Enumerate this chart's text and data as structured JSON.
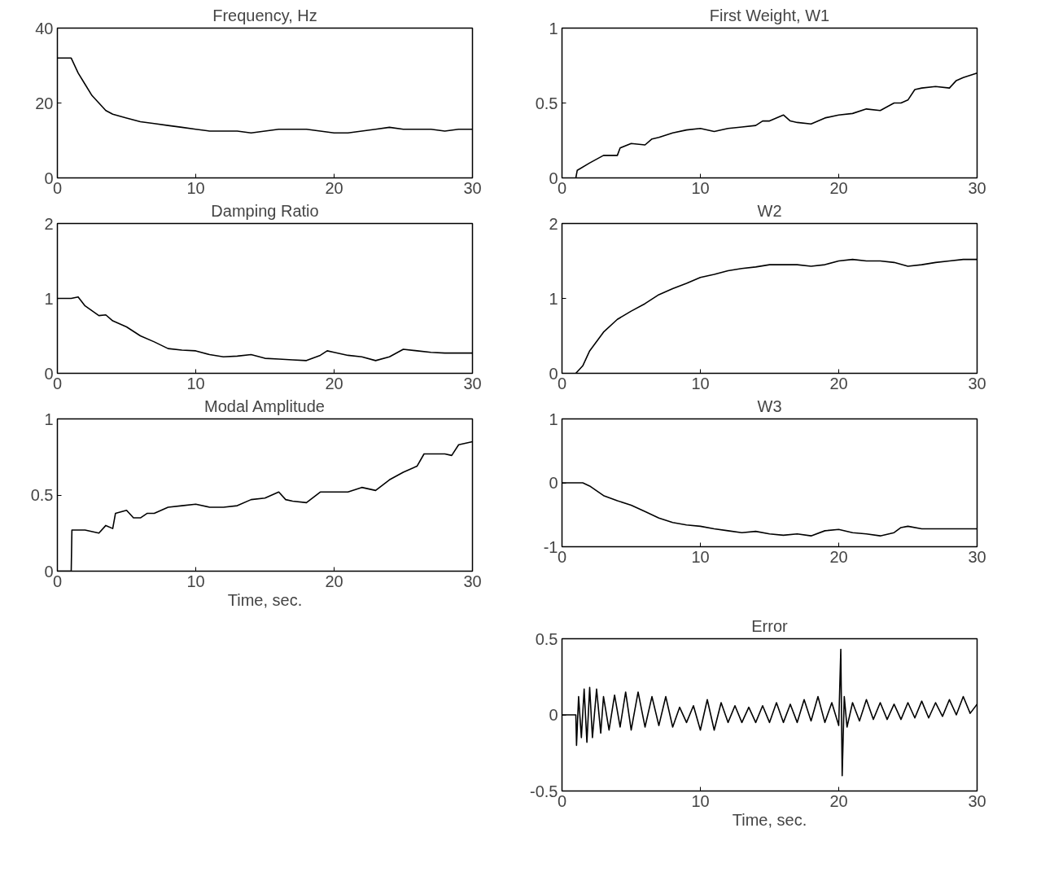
{
  "chart_data": [
    {
      "type": "line",
      "title": "Frequency, Hz",
      "xlim": [
        0,
        30
      ],
      "xticks": [
        0,
        10,
        20,
        30
      ],
      "ylim": [
        0,
        40
      ],
      "yticks": [
        0,
        20,
        40
      ],
      "series": [
        {
          "color": "#000000",
          "x": [
            0,
            1,
            1.5,
            2,
            2.5,
            3,
            3.5,
            4,
            5,
            6,
            7,
            8,
            9,
            10,
            11,
            12,
            13,
            14,
            15,
            16,
            17,
            18,
            19,
            20,
            21,
            22,
            23,
            24,
            25,
            26,
            27,
            28,
            29,
            30
          ],
          "values": [
            32,
            32,
            28,
            25,
            22,
            20,
            18,
            17,
            16,
            15,
            14.5,
            14,
            13.5,
            13,
            12.5,
            12.5,
            12.5,
            12,
            12.5,
            13,
            13,
            13,
            12.5,
            12,
            12,
            12.5,
            13,
            13.5,
            13,
            13,
            13,
            12.5,
            13,
            13
          ]
        }
      ]
    },
    {
      "type": "line",
      "title": "Damping Ratio",
      "xlim": [
        0,
        30
      ],
      "xticks": [
        0,
        10,
        20,
        30
      ],
      "ylim": [
        0,
        2
      ],
      "yticks": [
        0,
        1,
        2
      ],
      "series": [
        {
          "color": "#000000",
          "x": [
            0,
            1,
            1.5,
            2,
            3,
            3.5,
            4,
            5,
            6,
            7,
            8,
            9,
            10,
            11,
            12,
            13,
            14,
            15,
            16,
            17,
            18,
            19,
            19.5,
            20,
            21,
            22,
            23,
            24,
            25,
            26,
            27,
            28,
            29,
            30
          ],
          "values": [
            1.0,
            1.0,
            1.02,
            0.9,
            0.77,
            0.78,
            0.7,
            0.62,
            0.5,
            0.42,
            0.33,
            0.31,
            0.3,
            0.25,
            0.22,
            0.23,
            0.25,
            0.2,
            0.19,
            0.18,
            0.17,
            0.24,
            0.3,
            0.28,
            0.24,
            0.22,
            0.17,
            0.22,
            0.32,
            0.3,
            0.28,
            0.27,
            0.27,
            0.27
          ]
        }
      ]
    },
    {
      "type": "line",
      "title": "Modal Amplitude",
      "xlabel": "Time, sec.",
      "xlim": [
        0,
        30
      ],
      "xticks": [
        0,
        10,
        20,
        30
      ],
      "ylim": [
        0,
        1
      ],
      "yticks": [
        0,
        0.5,
        1
      ],
      "series": [
        {
          "color": "#000000",
          "x": [
            0,
            1,
            1.05,
            2,
            3,
            3.5,
            4,
            4.2,
            5,
            5.5,
            6,
            6.5,
            7,
            8,
            9,
            10,
            11,
            12,
            13,
            14,
            15,
            16,
            16.5,
            17,
            18,
            19,
            20,
            21,
            22,
            23,
            24,
            25,
            26,
            26.5,
            27,
            28,
            28.5,
            29,
            30
          ],
          "values": [
            0,
            0,
            0.27,
            0.27,
            0.25,
            0.3,
            0.28,
            0.38,
            0.4,
            0.35,
            0.35,
            0.38,
            0.38,
            0.42,
            0.43,
            0.44,
            0.42,
            0.42,
            0.43,
            0.47,
            0.48,
            0.52,
            0.47,
            0.46,
            0.45,
            0.52,
            0.52,
            0.52,
            0.55,
            0.53,
            0.6,
            0.65,
            0.69,
            0.77,
            0.77,
            0.77,
            0.76,
            0.83,
            0.85
          ]
        }
      ]
    },
    {
      "type": "line",
      "title": "First Weight, W1",
      "xlim": [
        0,
        30
      ],
      "xticks": [
        0,
        10,
        20,
        30
      ],
      "ylim": [
        0,
        1
      ],
      "yticks": [
        0,
        0.5,
        1
      ],
      "series": [
        {
          "color": "#000000",
          "x": [
            1,
            1.1,
            2,
            3,
            4,
            4.2,
            5,
            6,
            6.5,
            7,
            8,
            9,
            10,
            11,
            12,
            13,
            14,
            14.5,
            15,
            16,
            16.5,
            17,
            18,
            19,
            20,
            21,
            22,
            23,
            24,
            24.5,
            25,
            25.5,
            26,
            27,
            28,
            28.5,
            29,
            30
          ],
          "values": [
            0,
            0.05,
            0.1,
            0.15,
            0.15,
            0.2,
            0.23,
            0.22,
            0.26,
            0.27,
            0.3,
            0.32,
            0.33,
            0.31,
            0.33,
            0.34,
            0.35,
            0.38,
            0.38,
            0.42,
            0.38,
            0.37,
            0.36,
            0.4,
            0.42,
            0.43,
            0.46,
            0.45,
            0.5,
            0.5,
            0.52,
            0.59,
            0.6,
            0.61,
            0.6,
            0.65,
            0.67,
            0.7
          ]
        }
      ]
    },
    {
      "type": "line",
      "title": "W2",
      "xlim": [
        0,
        30
      ],
      "xticks": [
        0,
        10,
        20,
        30
      ],
      "ylim": [
        0,
        2
      ],
      "yticks": [
        0,
        1,
        2
      ],
      "series": [
        {
          "color": "#000000",
          "x": [
            1,
            1.5,
            2,
            3,
            4,
            5,
            6,
            7,
            8,
            9,
            10,
            11,
            12,
            13,
            14,
            15,
            16,
            17,
            18,
            19,
            20,
            21,
            22,
            23,
            24,
            25,
            26,
            27,
            28,
            29,
            30
          ],
          "values": [
            0,
            0.1,
            0.3,
            0.55,
            0.72,
            0.83,
            0.93,
            1.05,
            1.13,
            1.2,
            1.28,
            1.32,
            1.37,
            1.4,
            1.42,
            1.45,
            1.45,
            1.45,
            1.43,
            1.45,
            1.5,
            1.52,
            1.5,
            1.5,
            1.48,
            1.43,
            1.45,
            1.48,
            1.5,
            1.52,
            1.52
          ]
        }
      ]
    },
    {
      "type": "line",
      "title": "W3",
      "xlim": [
        0,
        30
      ],
      "xticks": [
        0,
        10,
        20,
        30
      ],
      "ylim": [
        -1,
        1
      ],
      "yticks": [
        -1,
        0,
        1
      ],
      "series": [
        {
          "color": "#000000",
          "x": [
            0,
            1.5,
            2,
            3,
            4,
            5,
            6,
            7,
            8,
            9,
            10,
            11,
            12,
            13,
            14,
            15,
            16,
            17,
            18,
            19,
            20,
            21,
            22,
            23,
            24,
            24.5,
            25,
            26,
            28,
            30
          ],
          "values": [
            0,
            0,
            -0.05,
            -0.2,
            -0.28,
            -0.35,
            -0.45,
            -0.55,
            -0.62,
            -0.66,
            -0.68,
            -0.72,
            -0.75,
            -0.78,
            -0.76,
            -0.8,
            -0.82,
            -0.8,
            -0.83,
            -0.75,
            -0.73,
            -0.78,
            -0.8,
            -0.83,
            -0.78,
            -0.7,
            -0.68,
            -0.72,
            -0.72,
            -0.72
          ]
        }
      ]
    },
    {
      "type": "line",
      "title": "Error",
      "xlabel": "Time, sec.",
      "xlim": [
        0,
        30
      ],
      "xticks": [
        0,
        10,
        20,
        30
      ],
      "ylim": [
        -0.5,
        0.5
      ],
      "yticks": [
        -0.5,
        0,
        0.5
      ],
      "series": [
        {
          "color": "#000000",
          "x": [
            0,
            1,
            1.05,
            1.2,
            1.4,
            1.6,
            1.8,
            2,
            2.2,
            2.5,
            2.8,
            3,
            3.4,
            3.8,
            4.2,
            4.6,
            5,
            5.5,
            6,
            6.5,
            7,
            7.5,
            8,
            8.5,
            9,
            9.5,
            10,
            10.5,
            11,
            11.5,
            12,
            12.5,
            13,
            13.5,
            14,
            14.5,
            15,
            15.5,
            16,
            16.5,
            17,
            17.5,
            18,
            18.5,
            19,
            19.5,
            20,
            20.15,
            20.25,
            20.4,
            20.6,
            21,
            21.5,
            22,
            22.5,
            23,
            23.5,
            24,
            24.5,
            25,
            25.5,
            26,
            26.5,
            27,
            27.5,
            28,
            28.5,
            29,
            29.5,
            30
          ],
          "values": [
            0,
            0,
            -0.2,
            0.12,
            -0.15,
            0.17,
            -0.18,
            0.18,
            -0.15,
            0.17,
            -0.12,
            0.12,
            -0.1,
            0.13,
            -0.08,
            0.15,
            -0.1,
            0.15,
            -0.08,
            0.12,
            -0.07,
            0.12,
            -0.08,
            0.05,
            -0.05,
            0.06,
            -0.1,
            0.1,
            -0.1,
            0.08,
            -0.05,
            0.06,
            -0.05,
            0.05,
            -0.05,
            0.06,
            -0.05,
            0.08,
            -0.05,
            0.07,
            -0.05,
            0.1,
            -0.04,
            0.12,
            -0.05,
            0.08,
            -0.07,
            0.43,
            -0.4,
            0.12,
            -0.08,
            0.08,
            -0.04,
            0.1,
            -0.03,
            0.08,
            -0.03,
            0.07,
            -0.03,
            0.08,
            -0.02,
            0.09,
            -0.02,
            0.08,
            -0.01,
            0.1,
            0,
            0.12,
            0.01,
            0.07
          ]
        }
      ]
    }
  ]
}
